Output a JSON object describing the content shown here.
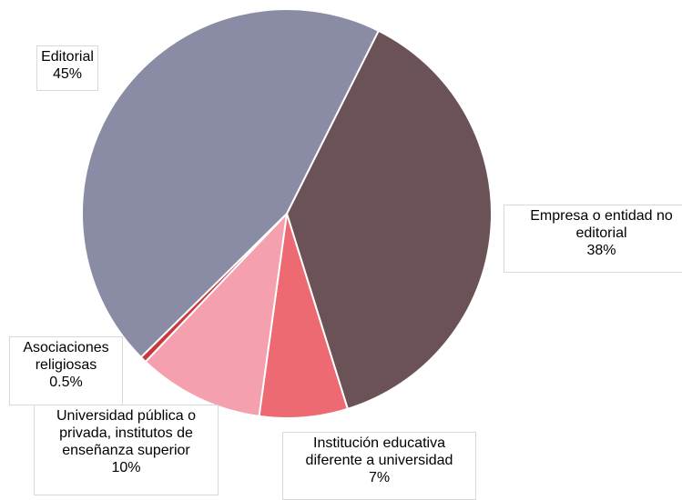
{
  "chart_data": {
    "type": "pie",
    "categories": [
      "Empresa o entidad no editorial",
      "Institución educativa diferente a universidad",
      "Universidad pública o privada, institutos de enseñanza superior",
      "Asociaciones religiosas",
      "Editorial"
    ],
    "values": [
      38,
      7,
      10,
      0.5,
      45
    ],
    "value_labels": [
      "38%",
      "7%",
      "10%",
      "0.5%",
      "45%"
    ],
    "colors": [
      "#6b5256",
      "#ee6a72",
      "#f4a0ae",
      "#c7393d",
      "#8a8ba5"
    ]
  }
}
